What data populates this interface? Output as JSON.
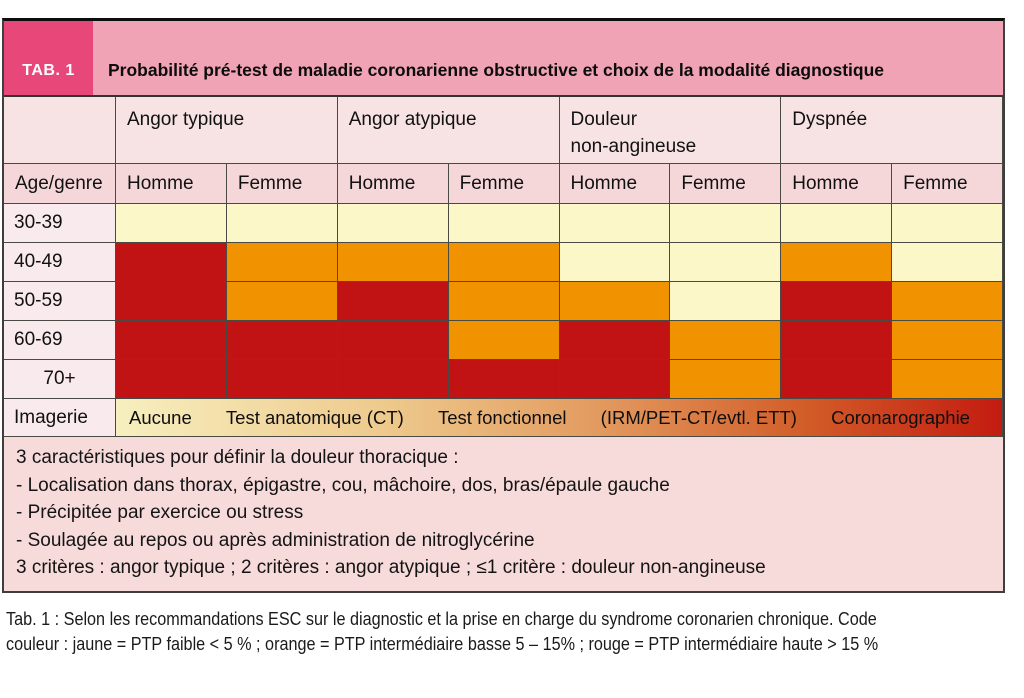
{
  "header": {
    "tab_label": "TAB. 1",
    "title": "Probabilité pré-test de maladie coronarienne obstructive et choix de la modalité diagnostique"
  },
  "columns": {
    "age_header": "Age/genre",
    "groups": [
      {
        "label": "Angor typique"
      },
      {
        "label": "Angor atypique"
      },
      {
        "label": "Douleur\nnon-angineuse"
      },
      {
        "label": "Dyspnée"
      }
    ],
    "sub": [
      "Homme",
      "Femme",
      "Homme",
      "Femme",
      "Homme",
      "Femme",
      "Homme",
      "Femme"
    ]
  },
  "legend": {
    "colors": {
      "Y": "#fbf7c9",
      "O": "#f19200",
      "R": "#c11313"
    }
  },
  "rows": [
    {
      "age": "30-39",
      "cells": [
        "Y",
        "Y",
        "Y",
        "Y",
        "Y",
        "Y",
        "Y",
        "Y"
      ]
    },
    {
      "age": "40-49",
      "cells": [
        "R",
        "O",
        "O",
        "O",
        "Y",
        "Y",
        "O",
        "Y"
      ]
    },
    {
      "age": "50-59",
      "cells": [
        "R",
        "O",
        "R",
        "O",
        "O",
        "Y",
        "R",
        "O"
      ]
    },
    {
      "age": "60-69",
      "cells": [
        "R",
        "R",
        "R",
        "O",
        "R",
        "O",
        "R",
        "O"
      ]
    },
    {
      "age": "70+",
      "age_align": "center",
      "cells": [
        "R",
        "R",
        "R",
        "R",
        "R",
        "O",
        "R",
        "O"
      ]
    }
  ],
  "imagerie": {
    "label": "Imagerie",
    "items": [
      "Aucune",
      "Test anatomique (CT)",
      "Test fonctionnel",
      "(IRM/PET-CT/evtl. ETT)",
      "Coronarographie"
    ],
    "gradient": [
      "#f7efbf 0%",
      "#eeca8d 30%",
      "#e2995e 55%",
      "#d25c28 78%",
      "#c41b10 100%"
    ]
  },
  "footnote": {
    "lines": [
      "3 caractéristiques pour définir la douleur thoracique :",
      "- Localisation dans thorax, épigastre, cou, mâchoire, dos, bras/épaule gauche",
      "- Précipitée par exercice ou stress",
      "- Soulagée au repos ou après administration de nitroglycérine",
      "3 critères : angor typique ; 2 critères : angor atypique ; ≤1 critère : douleur non-angineuse"
    ]
  },
  "caption": {
    "line1": "Tab. 1 : Selon les recommandations ESC sur le diagnostic et la prise en charge du syndrome coronarien chronique. Code",
    "line2": "couleur : jaune = PTP faible < 5 % ;  orange = PTP intermédiaire basse 5 – 15% ; rouge = PTP intermédiaire haute > 15 %"
  }
}
